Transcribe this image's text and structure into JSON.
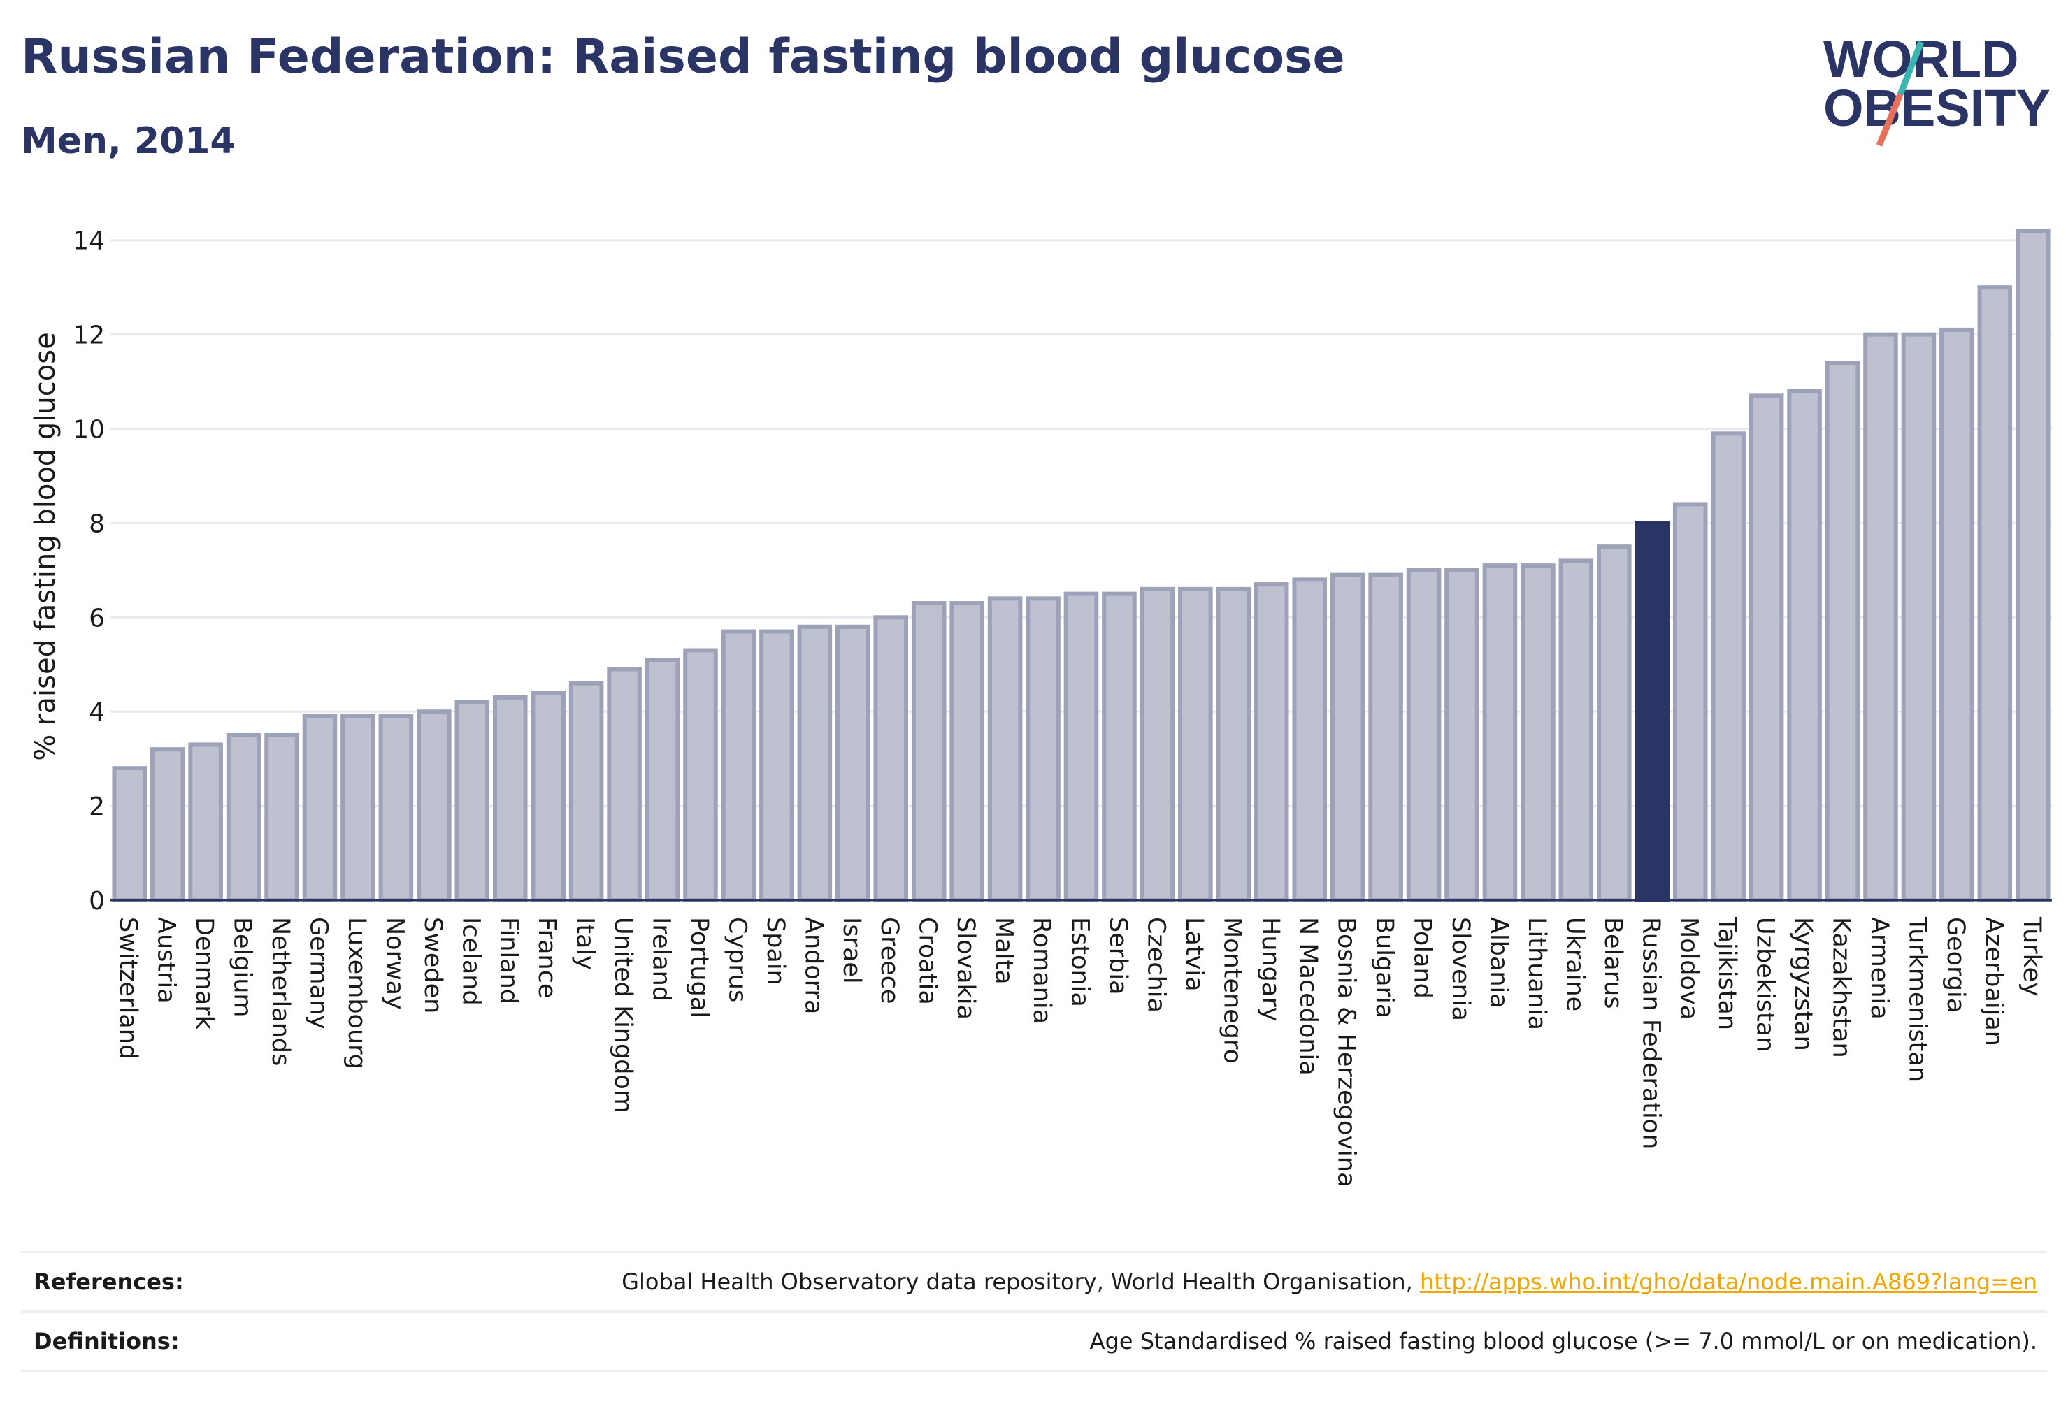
{
  "header": {
    "title": "Russian Federation: Raised fasting blood glucose",
    "subtitle": "Men, 2014"
  },
  "logo": {
    "line1": "WORLD",
    "line2": "OBESITY",
    "colors": {
      "text": "#2b3565",
      "slash_top": "#3ab5b0",
      "slash_bottom": "#e8705a"
    }
  },
  "colors": {
    "bar_fill": "#bdc1d0",
    "bar_stroke": "#9da2b8",
    "highlight": "#2b3565",
    "grid": "#e8e9ef",
    "axis": "#2b3565"
  },
  "chart_data": {
    "type": "bar",
    "ylabel": "% raised fasting blood glucose",
    "xlabel": "",
    "ylim": [
      0,
      14.5
    ],
    "yticks": [
      0,
      2,
      4,
      6,
      8,
      10,
      12,
      14
    ],
    "grid": true,
    "highlight": "Russian Federation",
    "categories": [
      "Switzerland",
      "Austria",
      "Denmark",
      "Belgium",
      "Netherlands",
      "Germany",
      "Luxembourg",
      "Norway",
      "Sweden",
      "Iceland",
      "Finland",
      "France",
      "Italy",
      "United Kingdom",
      "Ireland",
      "Portugal",
      "Cyprus",
      "Spain",
      "Andorra",
      "Israel",
      "Greece",
      "Croatia",
      "Slovakia",
      "Malta",
      "Romania",
      "Estonia",
      "Serbia",
      "Czechia",
      "Latvia",
      "Montenegro",
      "Hungary",
      "N Macedonia",
      "Bosnia & Herzegovina",
      "Bulgaria",
      "Poland",
      "Slovenia",
      "Albania",
      "Lithuania",
      "Ukraine",
      "Belarus",
      "Russian Federation",
      "Moldova",
      "Tajikistan",
      "Uzbekistan",
      "Kyrgyzstan",
      "Kazakhstan",
      "Armenia",
      "Turkmenistan",
      "Georgia",
      "Azerbaijan",
      "Turkey"
    ],
    "values": [
      2.8,
      3.2,
      3.3,
      3.5,
      3.5,
      3.9,
      3.9,
      3.9,
      4.0,
      4.2,
      4.3,
      4.4,
      4.6,
      4.9,
      5.1,
      5.3,
      5.7,
      5.7,
      5.8,
      5.8,
      6.0,
      6.3,
      6.3,
      6.4,
      6.4,
      6.5,
      6.5,
      6.6,
      6.6,
      6.6,
      6.7,
      6.8,
      6.9,
      6.9,
      7.0,
      7.0,
      7.1,
      7.1,
      7.2,
      7.5,
      8.0,
      8.4,
      9.9,
      10.7,
      10.8,
      11.4,
      12.0,
      12.0,
      12.1,
      13.0,
      14.2
    ]
  },
  "footer": {
    "references_label": "References:",
    "references_text": "Global Health Observatory data repository, World Health Organisation, ",
    "references_link": "http://apps.who.int/gho/data/node.main.A869?lang=en",
    "definitions_label": "Definitions:",
    "definitions_text": "Age Standardised % raised fasting blood glucose (>= 7.0 mmol/L or on medication)."
  }
}
